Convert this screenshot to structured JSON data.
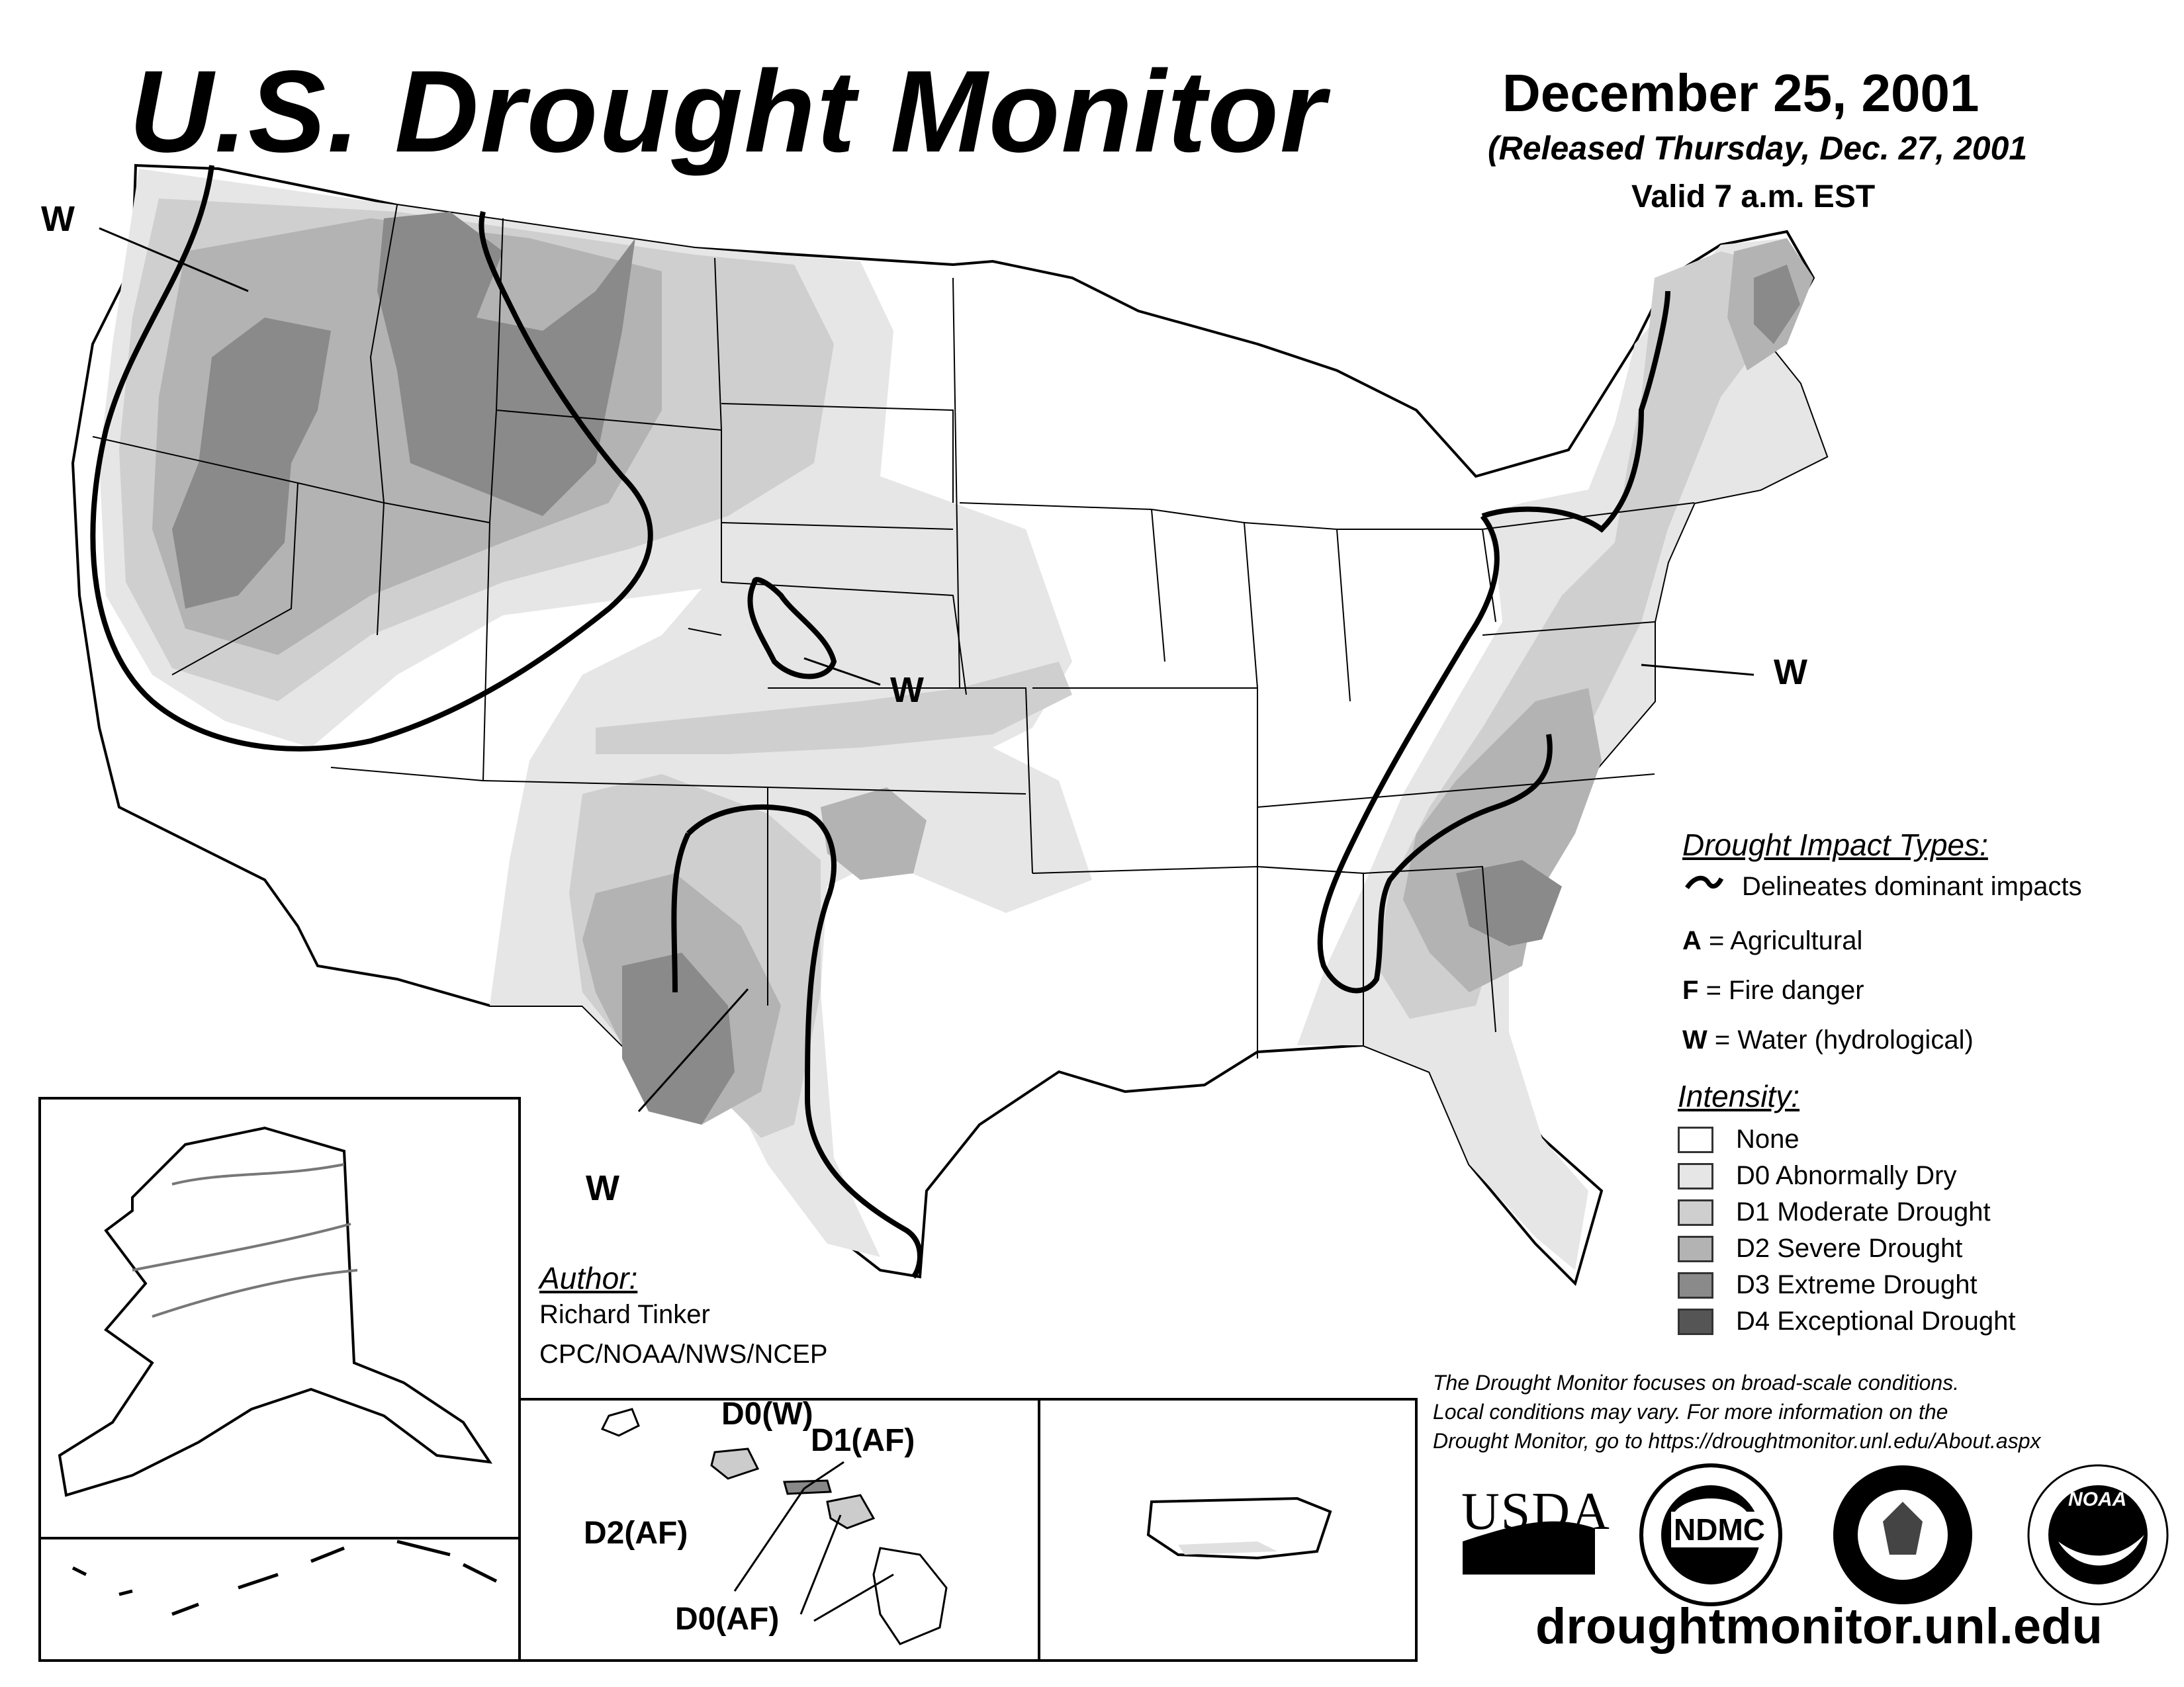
{
  "title": "U.S. Drought Monitor",
  "date": "December 25, 2001",
  "released": "(Released Thursday, Dec. 27, 2001",
  "valid": "Valid 7 a.m. EST",
  "map_labels": {
    "w_pacific_nw": "W",
    "w_kansas": "W",
    "w_texas": "W",
    "w_mid_atlantic": "W"
  },
  "impact_types": {
    "heading": "Drought Impact Types:",
    "delineates": "Delineates dominant impacts",
    "agricultural_key": "A",
    "agricultural_text": "= Agricultural",
    "fire_key": "F",
    "fire_text": "= Fire danger",
    "water_key": "W",
    "water_text": "= Water (hydrological)"
  },
  "intensity": {
    "heading": "Intensity:",
    "levels": [
      {
        "label": "None",
        "color": "#ffffff"
      },
      {
        "label": "D0 Abnormally Dry",
        "color": "#e6e6e6"
      },
      {
        "label": "D1 Moderate Drought",
        "color": "#cfcfcf"
      },
      {
        "label": "D2 Severe Drought",
        "color": "#b3b3b3"
      },
      {
        "label": "D3 Extreme Drought",
        "color": "#8a8a8a"
      },
      {
        "label": "D4 Exceptional Drought",
        "color": "#555555"
      }
    ]
  },
  "author": {
    "heading": "Author:",
    "name": "Richard Tinker",
    "org": "CPC/NOAA/NWS/NCEP"
  },
  "hawaii_labels": {
    "d0w": "D0(W)",
    "d1af": "D1(AF)",
    "d2af": "D2(AF)",
    "d0af": "D0(AF)"
  },
  "disclaimer": {
    "line1": "The Drought Monitor focuses on broad-scale conditions.",
    "line2": "Local conditions may vary. For more information on the",
    "line3": "Drought Monitor, go to https://droughtmonitor.unl.edu/About.aspx"
  },
  "logos": {
    "usda": "USDA",
    "ndmc": "NDMC",
    "noaa": "NOAA"
  },
  "website": "droughtmonitor.unl.edu"
}
